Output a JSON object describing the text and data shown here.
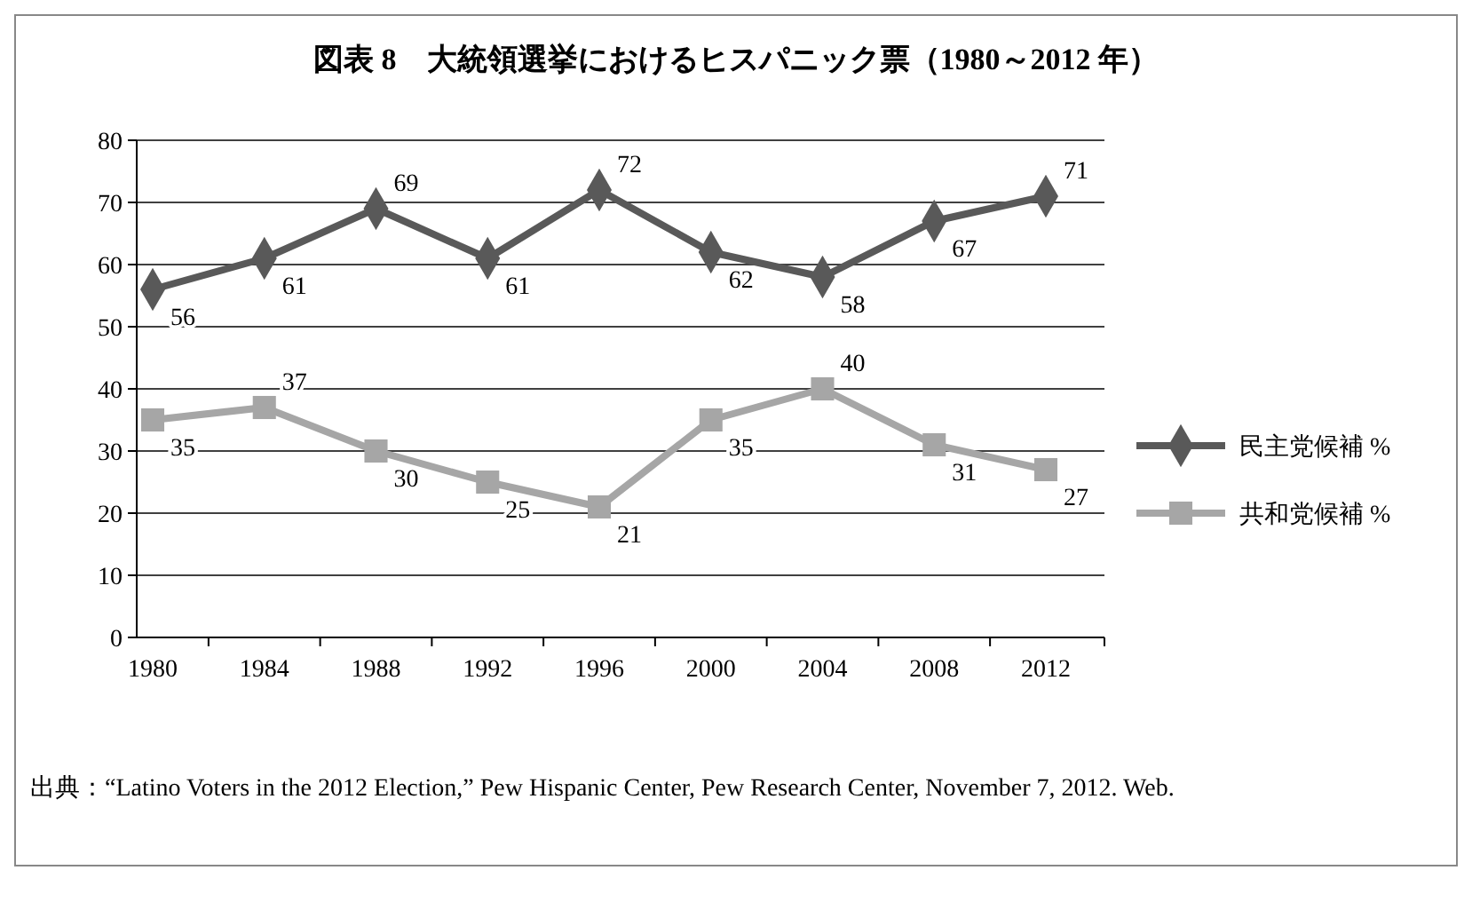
{
  "chart_data": {
    "type": "line",
    "title": "図表 8　大統領選挙におけるヒスパニック票（1980～2012 年）",
    "categories": [
      "1980",
      "1984",
      "1988",
      "1992",
      "1996",
      "2000",
      "2004",
      "2008",
      "2012"
    ],
    "series": [
      {
        "name": "民主党候補 %",
        "color": "#595959",
        "marker": "diamond",
        "values": [
          56,
          61,
          69,
          61,
          72,
          62,
          58,
          67,
          71
        ]
      },
      {
        "name": "共和党候補 %",
        "color": "#a6a6a6",
        "marker": "square",
        "values": [
          35,
          37,
          30,
          25,
          21,
          35,
          40,
          31,
          27
        ]
      }
    ],
    "ylim": [
      0,
      80
    ],
    "yticks": [
      0,
      10,
      20,
      30,
      40,
      50,
      60,
      70,
      80
    ],
    "grid": "y",
    "legend": "right",
    "data_labels": true,
    "line_style": "solid",
    "annotations": [
      "出典：“Latino Voters in the 2012 Election,” Pew Hispanic Center, Pew Research Center, November 7, 2012. Web."
    ]
  }
}
